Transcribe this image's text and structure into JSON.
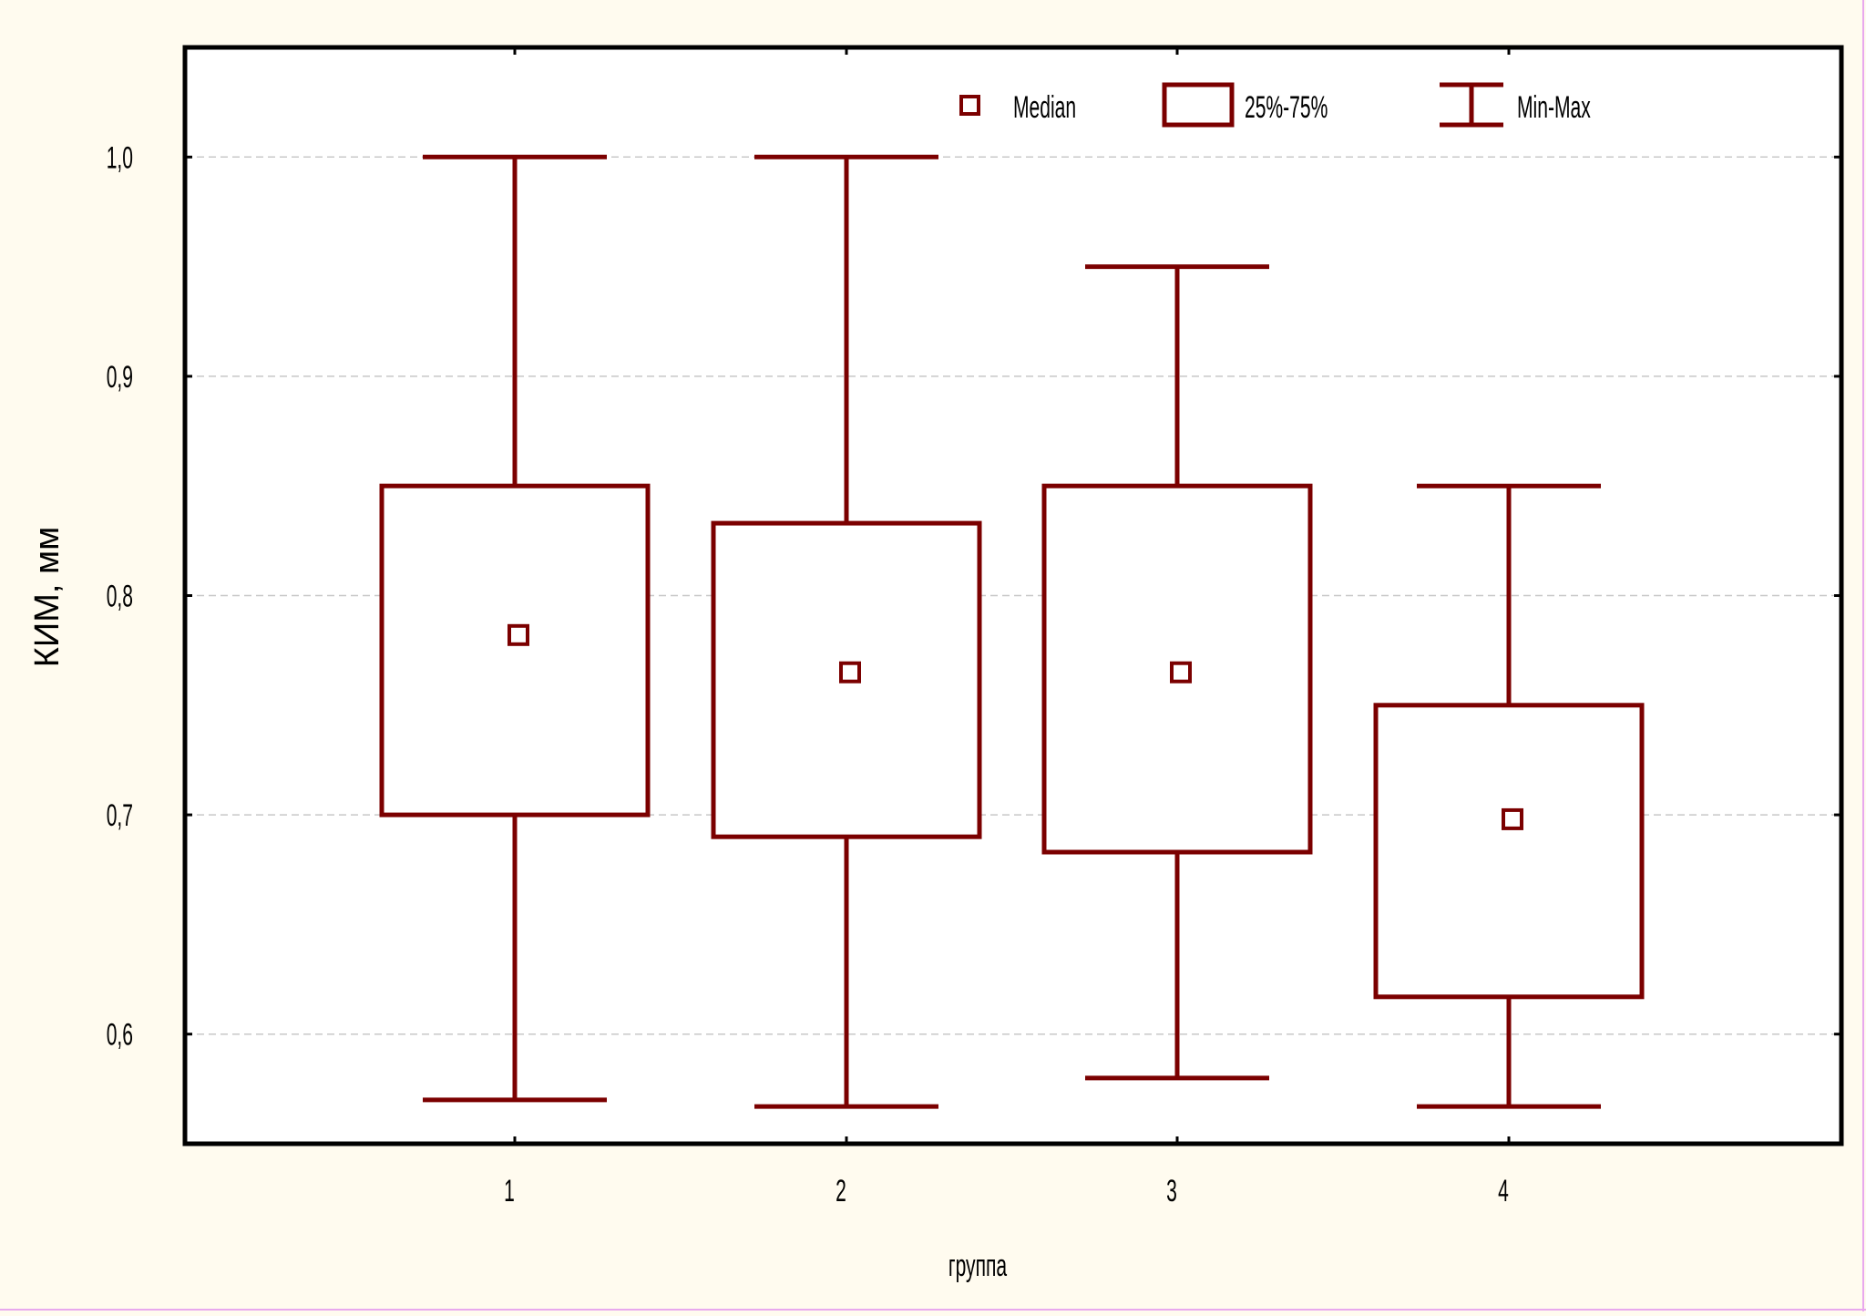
{
  "chart_data": {
    "type": "box",
    "xlabel": "группа",
    "ylabel": "КИМ, мм",
    "categories": [
      "1",
      "2",
      "3",
      "4"
    ],
    "boxes": [
      {
        "category": "1",
        "min": 0.57,
        "q1": 0.7,
        "median": 0.782,
        "q3": 0.85,
        "max": 1.0
      },
      {
        "category": "2",
        "min": 0.567,
        "q1": 0.69,
        "median": 0.765,
        "q3": 0.833,
        "max": 1.0
      },
      {
        "category": "3",
        "min": 0.58,
        "q1": 0.683,
        "median": 0.765,
        "q3": 0.85,
        "max": 0.95
      },
      {
        "category": "4",
        "min": 0.567,
        "q1": 0.617,
        "median": 0.698,
        "q3": 0.75,
        "max": 0.85
      }
    ],
    "ylim": [
      0.55,
      1.05
    ],
    "yticks": [
      {
        "value": 0.6,
        "label": "0,6"
      },
      {
        "value": 0.7,
        "label": "0,7"
      },
      {
        "value": 0.8,
        "label": "0,8"
      },
      {
        "value": 0.9,
        "label": "0,9"
      },
      {
        "value": 1.0,
        "label": "1,0"
      }
    ],
    "grid": true,
    "legend_position": "top-right",
    "legend": [
      {
        "key": "median",
        "label": "Median"
      },
      {
        "key": "box",
        "label": "25%-75%"
      },
      {
        "key": "whisker",
        "label": "Min-Max"
      }
    ],
    "colors": {
      "box": "#7b0000",
      "background": "#fffbef",
      "plot": "#ffffff",
      "grid": "#c8c8c8"
    }
  }
}
